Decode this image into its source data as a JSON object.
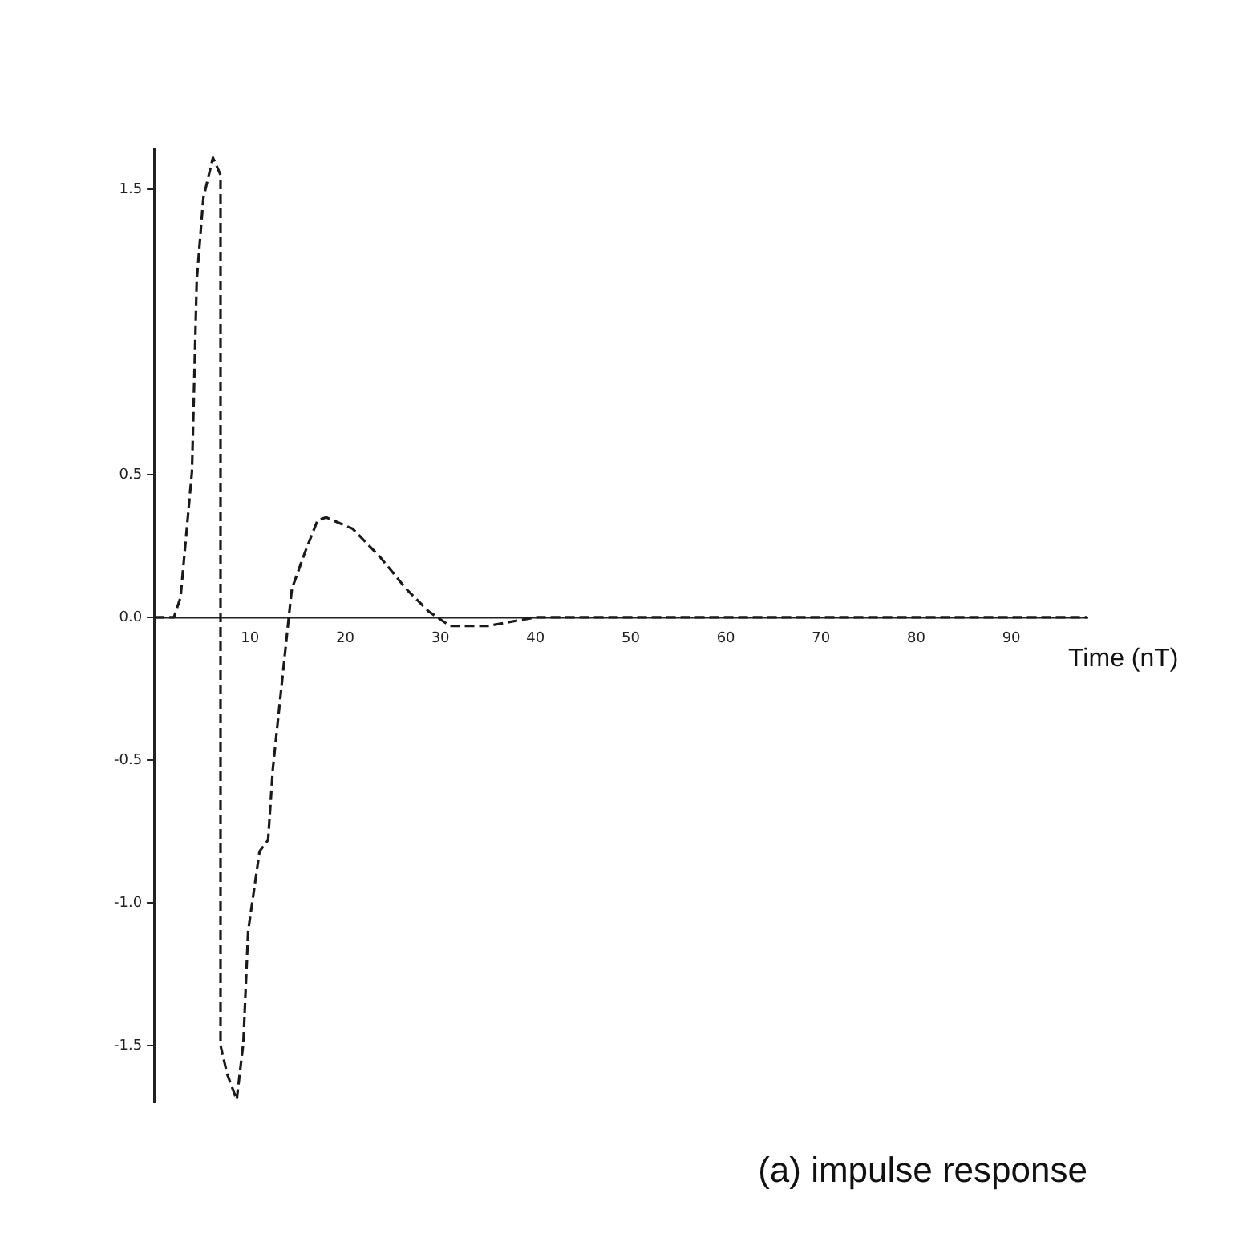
{
  "chart_data": {
    "type": "line",
    "title": "(a) impulse response",
    "xlabel": "Time (nT)",
    "x": [
      0,
      2,
      2.7,
      3.9,
      4.4,
      5.1,
      6.1,
      6.9,
      6.9,
      7.6,
      8.6,
      9.3,
      9.8,
      11,
      11.9,
      12.4,
      13.6,
      14.2,
      14.4,
      15.8,
      17.1,
      18,
      20.8,
      23.7,
      26.4,
      28.8,
      31,
      35,
      40,
      50,
      60,
      70,
      80,
      90,
      98
    ],
    "series": [
      {
        "color": "#1a1a1a",
        "values": [
          0,
          0,
          0.07,
          0.51,
          1.18,
          1.47,
          1.61,
          1.55,
          -1.5,
          -1.6,
          -1.69,
          -1.49,
          -1.1,
          -0.82,
          -0.78,
          -0.53,
          -0.15,
          0.04,
          0.1,
          0.23,
          0.34,
          0.35,
          0.31,
          0.21,
          0.1,
          0.02,
          -0.03,
          -0.03,
          0,
          0,
          0,
          0,
          0,
          0,
          0
        ]
      }
    ],
    "xlim": [
      0,
      98
    ],
    "xticks": [
      10,
      20,
      30,
      40,
      50,
      60,
      70,
      80,
      90
    ],
    "ylim": [
      -1.7,
      1.64
    ],
    "yticks": [
      -1.5,
      {
        "value": -1,
        "label": "-1.0"
      },
      -0.5,
      {
        "value": 0,
        "label": "0.0"
      },
      0.5,
      1.5
    ],
    "grid": false,
    "legend": false,
    "marker": "none",
    "line_style": "dashed"
  }
}
